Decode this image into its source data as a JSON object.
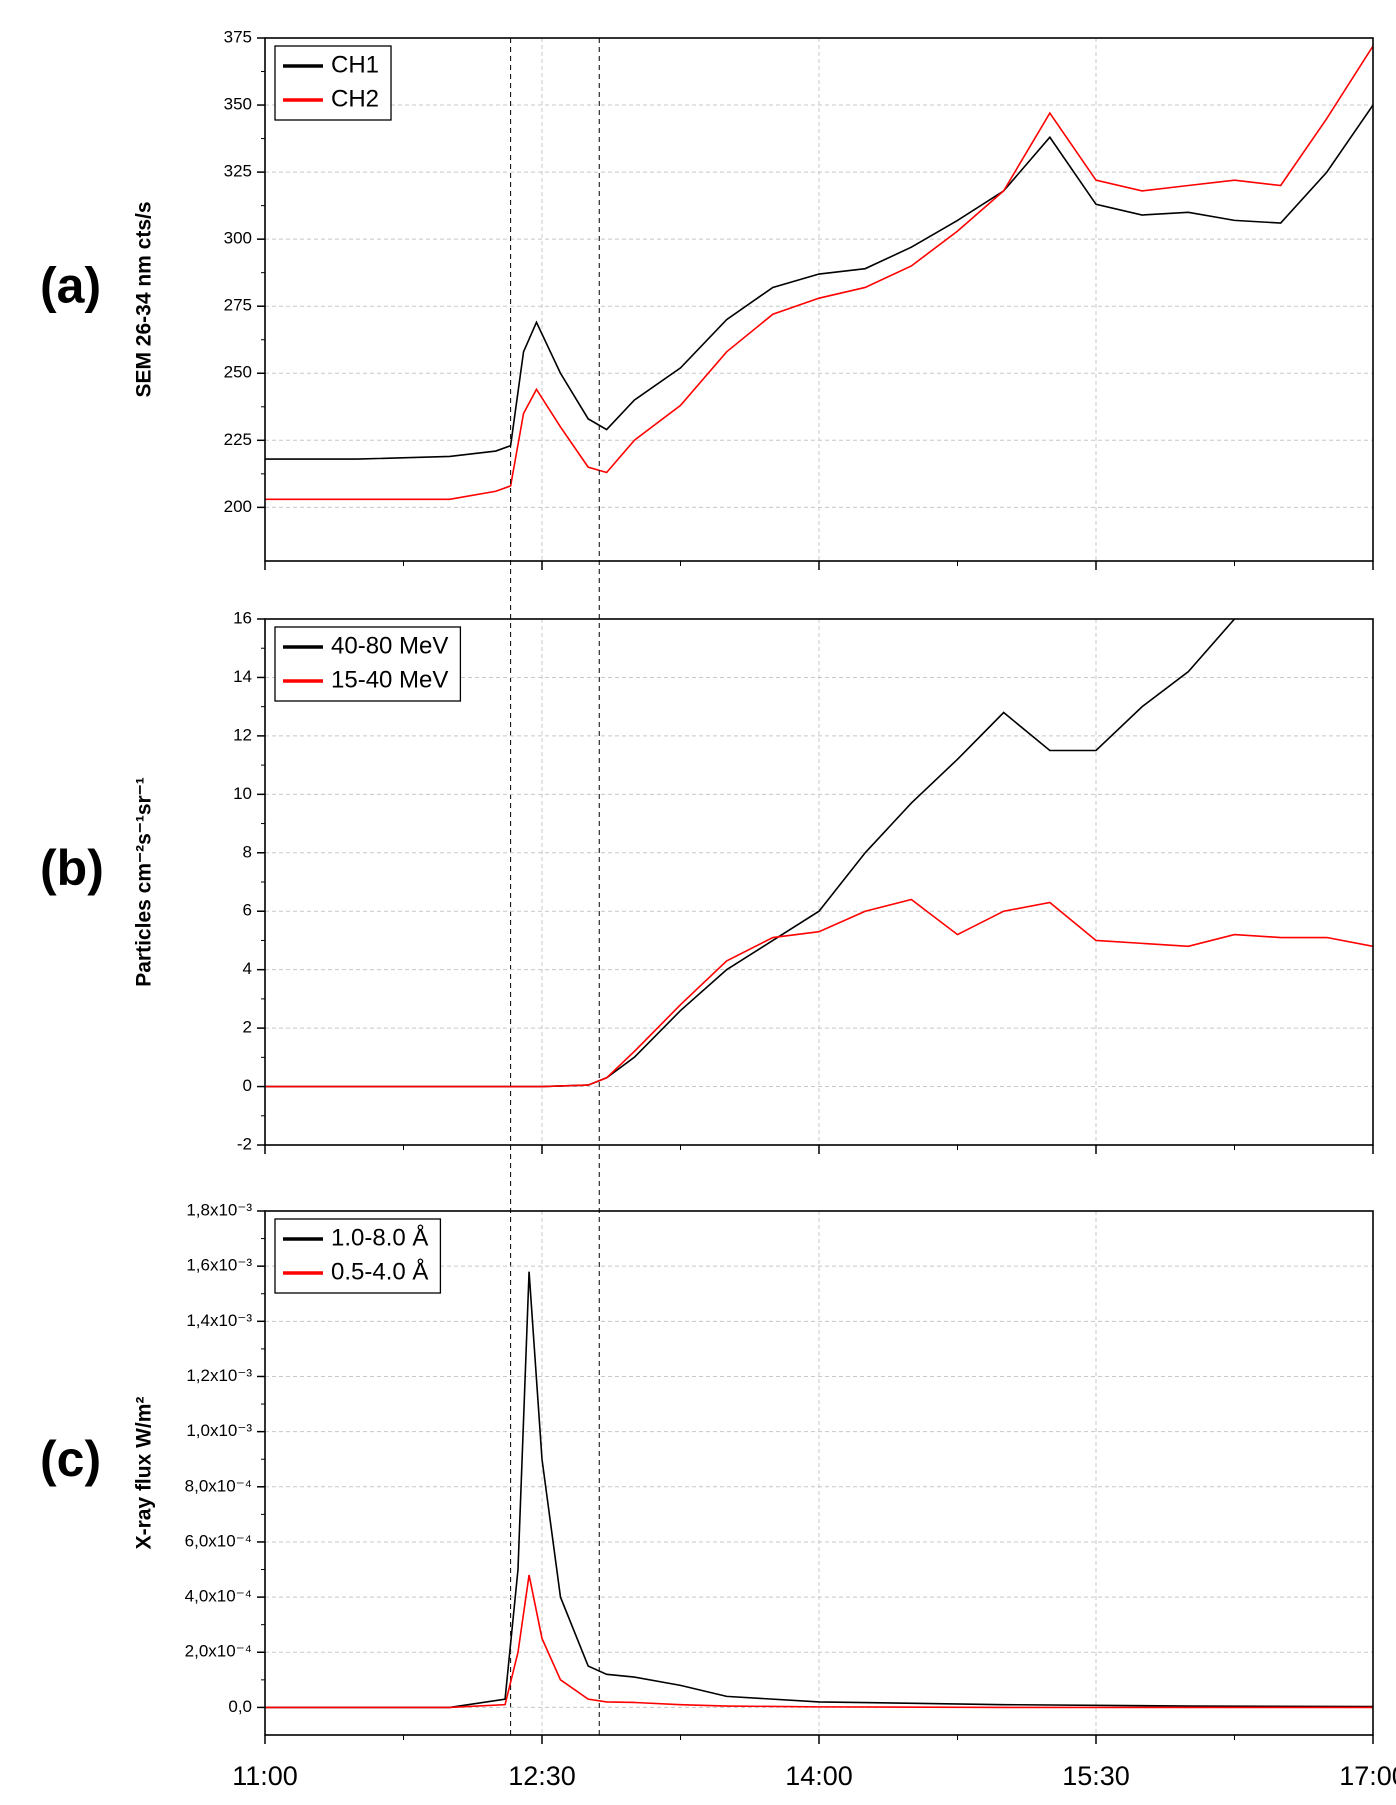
{
  "chart_data": [
    {
      "type": "line",
      "panel_label": "(a)",
      "y_label": "SEM 26-34 nm cts/s",
      "legend": "upper left",
      "grid": true,
      "xlim": [
        11,
        17
      ],
      "xticks": [
        11,
        12.5,
        14,
        15.5,
        17
      ],
      "ylim": [
        180,
        375
      ],
      "yticks": [
        200,
        225,
        250,
        275,
        300,
        325,
        350,
        375
      ],
      "vlines": [
        12.33,
        12.81
      ],
      "x": [
        11,
        11.5,
        12,
        12.25,
        12.33,
        12.4,
        12.47,
        12.6,
        12.75,
        12.85,
        13,
        13.25,
        13.5,
        13.75,
        14,
        14.25,
        14.5,
        14.75,
        15,
        15.25,
        15.5,
        15.75,
        16,
        16.25,
        16.5,
        16.75,
        17
      ],
      "series": [
        {
          "name": "CH1",
          "color": "#000000",
          "values": [
            218,
            218,
            219,
            221,
            223,
            258,
            269,
            250,
            233,
            229,
            240,
            252,
            270,
            282,
            287,
            289,
            297,
            307,
            318,
            338,
            313,
            309,
            310,
            307,
            306,
            325,
            350
          ]
        },
        {
          "name": "CH2",
          "color": "#ff0000",
          "values": [
            203,
            203,
            203,
            206,
            208,
            235,
            244,
            230,
            215,
            213,
            225,
            238,
            258,
            272,
            278,
            282,
            290,
            303,
            318,
            347,
            322,
            318,
            320,
            322,
            320,
            345,
            372
          ]
        }
      ]
    },
    {
      "type": "line",
      "panel_label": "(b)",
      "y_label": "Particles cm⁻²s⁻¹sr⁻¹",
      "legend": "upper left",
      "grid": true,
      "xlim": [
        11,
        17
      ],
      "xticks": [
        11,
        12.5,
        14,
        15.5,
        17
      ],
      "ylim": [
        -2,
        16
      ],
      "yticks": [
        -2,
        0,
        2,
        4,
        6,
        8,
        10,
        12,
        14,
        16
      ],
      "x": [
        11,
        12,
        12.5,
        12.75,
        12.85,
        13,
        13.25,
        13.5,
        13.75,
        14,
        14.25,
        14.5,
        14.75,
        15,
        15.25,
        15.5,
        15.75,
        16,
        16.25,
        16.5,
        16.75,
        17
      ],
      "series": [
        {
          "name": "40-80 MeV",
          "color": "#000000",
          "values": [
            0,
            0,
            0,
            0.05,
            0.3,
            1.0,
            2.6,
            4.0,
            5.0,
            6.0,
            8.0,
            9.7,
            11.2,
            12.8,
            11.5,
            11.5,
            13.0,
            14.2,
            16.0,
            null,
            null,
            null
          ]
        },
        {
          "name": "15-40 MeV",
          "color": "#ff0000",
          "values": [
            0,
            0,
            0,
            0.05,
            0.3,
            1.2,
            2.8,
            4.3,
            5.1,
            5.3,
            6.0,
            6.4,
            5.2,
            6.0,
            6.3,
            5.0,
            4.9,
            4.8,
            5.2,
            5.1,
            5.1,
            4.8
          ]
        }
      ]
    },
    {
      "type": "line",
      "panel_label": "(c)",
      "y_label": "X-ray flux W/m²",
      "legend": "upper left",
      "grid": true,
      "xlim": [
        11,
        17
      ],
      "xticks": [
        {
          "value": 11,
          "label": "11:00"
        },
        {
          "value": 12.5,
          "label": "12:30"
        },
        {
          "value": 14,
          "label": "14:00"
        },
        {
          "value": 15.5,
          "label": "15:30"
        },
        {
          "value": 17,
          "label": "17:00"
        }
      ],
      "ylim": [
        -0.0001,
        0.0018
      ],
      "yticks": [
        {
          "value": 0,
          "label": "0,0"
        },
        {
          "value": 0.0002,
          "label": "2,0x10⁻⁴"
        },
        {
          "value": 0.0004,
          "label": "4,0x10⁻⁴"
        },
        {
          "value": 0.0006,
          "label": "6,0x10⁻⁴"
        },
        {
          "value": 0.0008,
          "label": "8,0x10⁻⁴"
        },
        {
          "value": 0.001,
          "label": "1,0x10⁻³"
        },
        {
          "value": 0.0012,
          "label": "1,2x10⁻³"
        },
        {
          "value": 0.0014,
          "label": "1,4x10⁻³"
        },
        {
          "value": 0.0016,
          "label": "1,6x10⁻³"
        },
        {
          "value": 0.0018,
          "label": "1,8x10⁻³"
        }
      ],
      "x": [
        11,
        12,
        12.3,
        12.37,
        12.43,
        12.5,
        12.6,
        12.75,
        12.85,
        13,
        13.25,
        13.5,
        14,
        15,
        16,
        17
      ],
      "series": [
        {
          "name": "1.0-8.0 Å",
          "color": "#000000",
          "values": [
            0,
            0,
            3e-05,
            0.0005,
            0.00158,
            0.0009,
            0.0004,
            0.00015,
            0.00012,
            0.00011,
            8e-05,
            4e-05,
            2e-05,
            1e-05,
            5e-06,
            3e-06
          ]
        },
        {
          "name": "0.5-4.0 Å",
          "color": "#ff0000",
          "values": [
            0,
            0,
            1e-05,
            0.0002,
            0.00048,
            0.00025,
            0.0001,
            3e-05,
            2e-05,
            1.8e-05,
            1e-05,
            5e-06,
            2e-06,
            0,
            0,
            0
          ]
        }
      ]
    }
  ]
}
